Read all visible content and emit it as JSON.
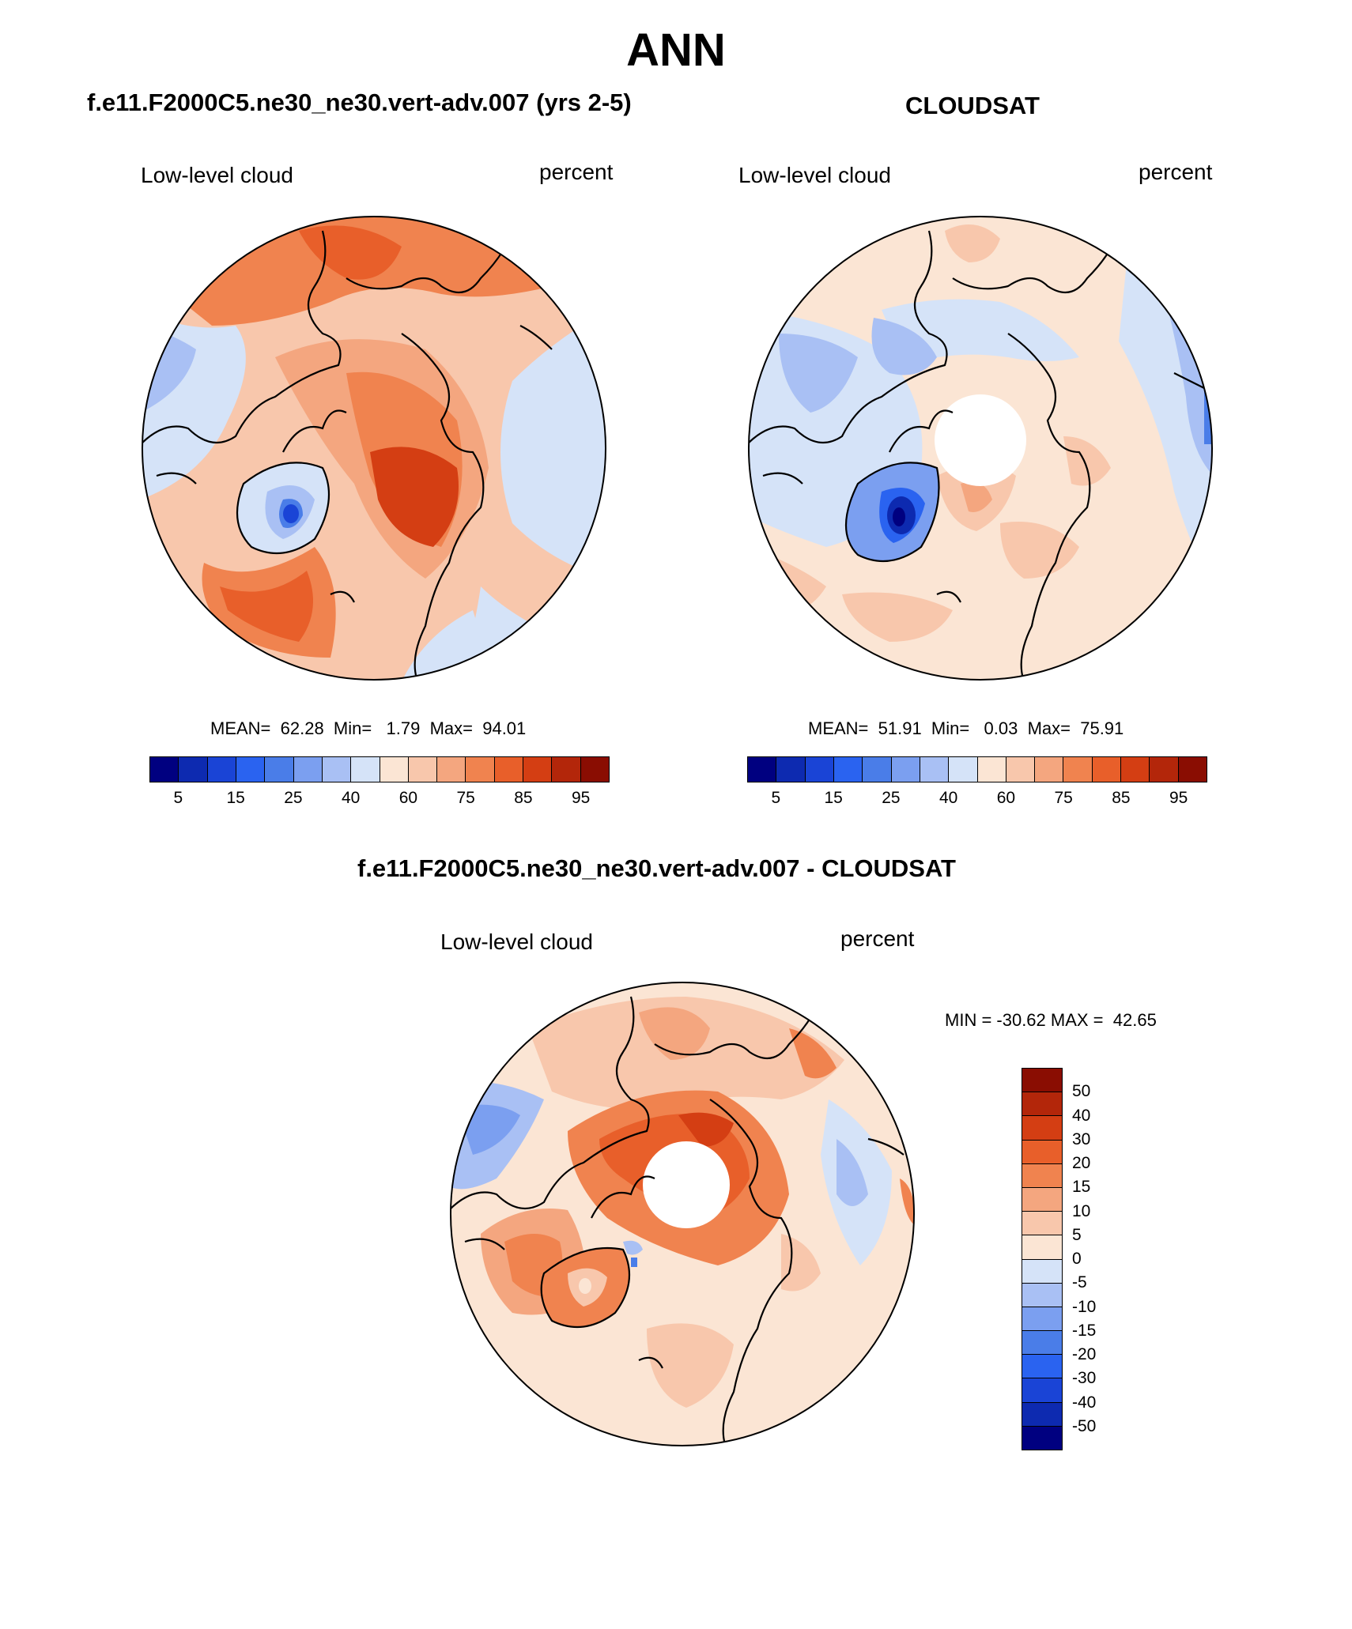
{
  "figure_title": "ANN",
  "panels": {
    "model": {
      "title": "f.e11.F2000C5.ne30_ne30.vert-adv.007 (yrs 2-5)",
      "left_label": "Low-level cloud",
      "right_label": "percent",
      "stats": "MEAN=  62.28  Min=   1.79  Max=  94.01",
      "colorbar_labels": [
        "5",
        "15",
        "25",
        "40",
        "60",
        "75",
        "85",
        "95"
      ]
    },
    "obs": {
      "title": "CLOUDSAT",
      "left_label": "Low-level cloud",
      "right_label": "percent",
      "stats": "MEAN=  51.91  Min=   0.03  Max=  75.91",
      "colorbar_labels": [
        "5",
        "15",
        "25",
        "40",
        "60",
        "75",
        "85",
        "95"
      ]
    },
    "diff": {
      "title": "f.e11.F2000C5.ne30_ne30.vert-adv.007 - CLOUDSAT",
      "left_label": "Low-level cloud",
      "right_label": "percent",
      "stats": "MIN = -30.62 MAX =  42.65",
      "colorbar_labels": [
        "50",
        "40",
        "30",
        "20",
        "15",
        "10",
        "5",
        "0",
        "-5",
        "-10",
        "-15",
        "-20",
        "-30",
        "-40",
        "-50"
      ]
    }
  },
  "colors": {
    "palette": [
      "#000080",
      "#0d2ab0",
      "#1a44d6",
      "#2a63f0",
      "#4a7de8",
      "#7b9ff0",
      "#a9c0f4",
      "#d5e3f8",
      "#fbe5d4",
      "#f8c7ac",
      "#f4a67f",
      "#f0834f",
      "#e85f2a",
      "#d43e13",
      "#b3260a",
      "#8a0d02"
    ],
    "land": "#000000",
    "background": "#ffffff"
  }
}
